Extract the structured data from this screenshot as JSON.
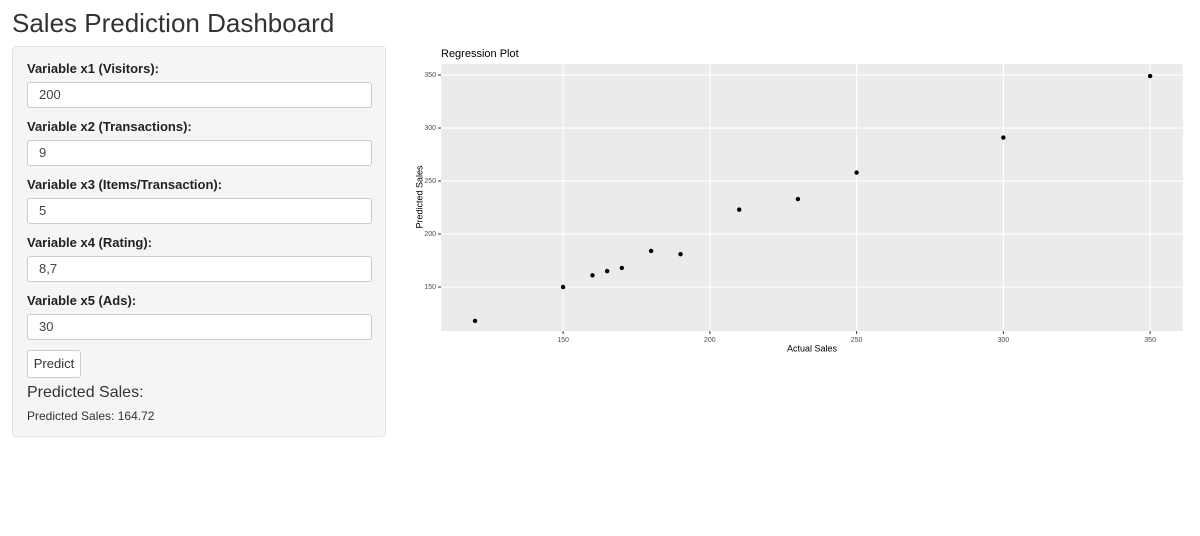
{
  "header": {
    "title": "Sales Prediction Dashboard"
  },
  "sidebar": {
    "inputs": [
      {
        "label": "Variable x1 (Visitors):",
        "value": "200"
      },
      {
        "label": "Variable x2 (Transactions):",
        "value": "9"
      },
      {
        "label": "Variable x3 (Items/Transaction):",
        "value": "5"
      },
      {
        "label": "Variable x4 (Rating):",
        "value": "8,7"
      },
      {
        "label": "Variable x5 (Ads):",
        "value": "30"
      }
    ],
    "button": "Predict",
    "output_heading": "Predicted Sales:",
    "output_text": "Predicted Sales: 164.72"
  },
  "chart_data": {
    "type": "scatter",
    "title": "Regression Plot",
    "x_label": "Actual Sales",
    "y_label": "Predicted Sales",
    "x": [
      120,
      150,
      160,
      165,
      170,
      180,
      190,
      210,
      230,
      250,
      300,
      350
    ],
    "values": [
      118,
      150,
      161,
      165,
      168,
      184,
      181,
      223,
      233,
      258,
      291,
      349
    ],
    "color": "#000000",
    "xlim": [
      108.4,
      361.2
    ],
    "ylim": [
      108.5,
      360.4
    ],
    "xticks": [
      150,
      200,
      250,
      300,
      350
    ],
    "yticks": [
      150,
      200,
      250,
      300,
      350
    ],
    "grid": true
  }
}
